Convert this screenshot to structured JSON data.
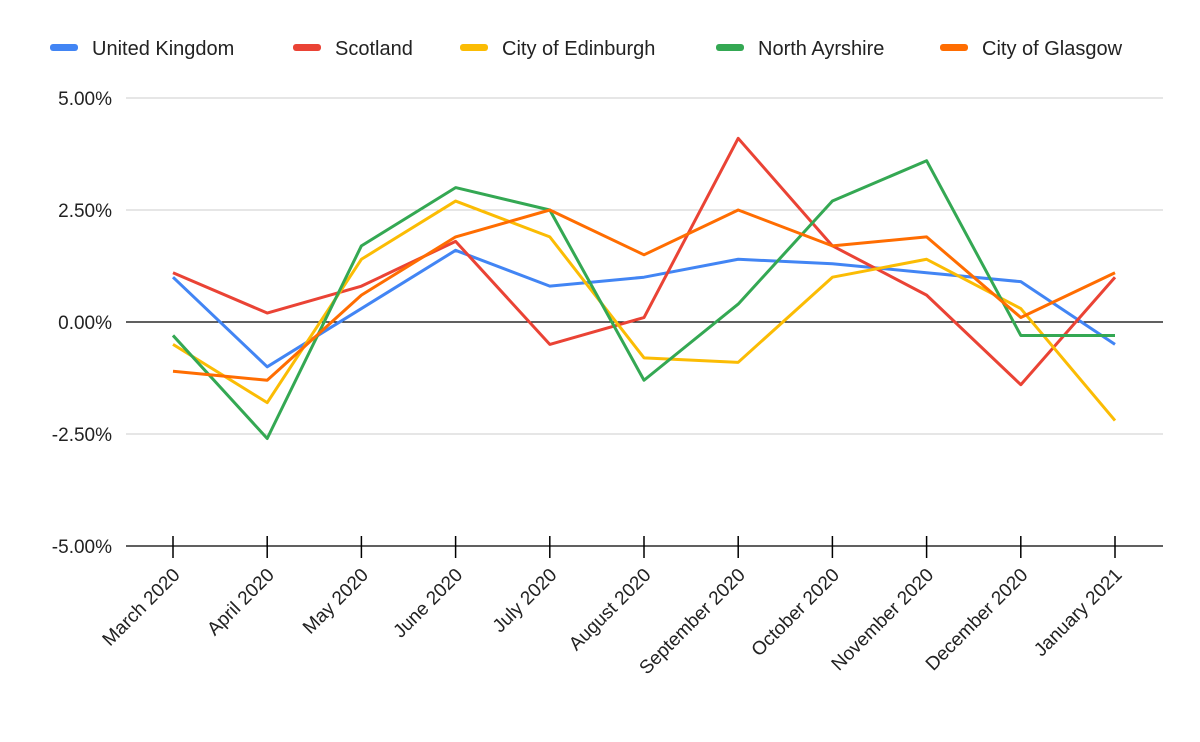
{
  "chart_data": {
    "type": "line",
    "title": "",
    "xlabel": "",
    "ylabel": "",
    "categories": [
      "March 2020",
      "April 2020",
      "May 2020",
      "June 2020",
      "July 2020",
      "August 2020",
      "September 2020",
      "October 2020",
      "November 2020",
      "December 2020",
      "January 2021"
    ],
    "ylim": [
      -5,
      5
    ],
    "yticks": [
      5,
      2.5,
      0,
      -2.5,
      -5
    ],
    "ytick_labels": [
      "5.00%",
      "2.50%",
      "0.00%",
      "-2.50%",
      "-5.00%"
    ],
    "grid": true,
    "legend_position": "top",
    "series": [
      {
        "name": "United Kingdom",
        "color": "#4285F4",
        "values": [
          1.0,
          -1.0,
          0.3,
          1.6,
          0.8,
          1.0,
          1.4,
          1.3,
          1.1,
          0.9,
          -0.5
        ]
      },
      {
        "name": "Scotland",
        "color": "#EA4335",
        "values": [
          1.1,
          0.2,
          0.8,
          1.8,
          -0.5,
          0.1,
          4.1,
          1.7,
          0.6,
          -1.4,
          1.0
        ]
      },
      {
        "name": "City of Edinburgh",
        "color": "#FBBC04",
        "values": [
          -0.5,
          -1.8,
          1.4,
          2.7,
          1.9,
          -0.8,
          -0.9,
          1.0,
          1.4,
          0.3,
          -2.2
        ]
      },
      {
        "name": "North Ayrshire",
        "color": "#34A853",
        "values": [
          -0.3,
          -2.6,
          1.7,
          3.0,
          2.5,
          -1.3,
          0.4,
          2.7,
          3.6,
          -0.3,
          -0.3
        ]
      },
      {
        "name": "City of Glasgow",
        "color": "#FF6D01",
        "values": [
          -1.1,
          -1.3,
          0.6,
          1.9,
          2.5,
          1.5,
          2.5,
          1.7,
          1.9,
          0.1,
          1.1
        ]
      }
    ]
  }
}
